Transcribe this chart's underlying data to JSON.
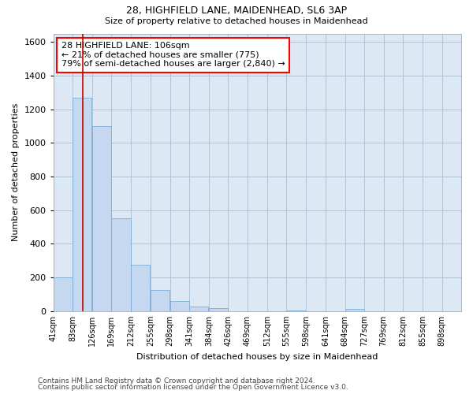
{
  "title1": "28, HIGHFIELD LANE, MAIDENHEAD, SL6 3AP",
  "title2": "Size of property relative to detached houses in Maidenhead",
  "xlabel": "Distribution of detached houses by size in Maidenhead",
  "ylabel": "Number of detached properties",
  "footnote1": "Contains HM Land Registry data © Crown copyright and database right 2024.",
  "footnote2": "Contains public sector information licensed under the Open Government Licence v3.0.",
  "annotation_line1": "28 HIGHFIELD LANE: 106sqm",
  "annotation_line2": "← 21% of detached houses are smaller (775)",
  "annotation_line3": "79% of semi-detached houses are larger (2,840) →",
  "bar_color": "#c5d8ef",
  "bar_edge_color": "#7aadd4",
  "bg_color": "#dde8f5",
  "grid_color": "#b0c4d8",
  "red_line_color": "#cc0000",
  "categories": [
    "41sqm",
    "83sqm",
    "126sqm",
    "169sqm",
    "212sqm",
    "255sqm",
    "298sqm",
    "341sqm",
    "384sqm",
    "426sqm",
    "469sqm",
    "512sqm",
    "555sqm",
    "598sqm",
    "641sqm",
    "684sqm",
    "727sqm",
    "769sqm",
    "812sqm",
    "855sqm",
    "898sqm"
  ],
  "bin_left_edges": [
    41,
    83,
    126,
    169,
    212,
    255,
    298,
    341,
    384,
    426,
    469,
    512,
    555,
    598,
    641,
    684,
    727,
    769,
    812,
    855,
    898
  ],
  "bin_width": 42,
  "values": [
    200,
    1270,
    1100,
    550,
    275,
    125,
    60,
    25,
    20,
    0,
    0,
    0,
    5,
    0,
    0,
    15,
    0,
    0,
    0,
    0,
    0
  ],
  "red_line_x": 106,
  "ylim": [
    0,
    1650
  ],
  "yticks": [
    0,
    200,
    400,
    600,
    800,
    1000,
    1200,
    1400,
    1600
  ],
  "title1_fontsize": 9,
  "title2_fontsize": 8,
  "xlabel_fontsize": 8,
  "ylabel_fontsize": 8,
  "xtick_fontsize": 7,
  "ytick_fontsize": 8,
  "annotation_fontsize": 8,
  "footnote_fontsize": 6.5
}
